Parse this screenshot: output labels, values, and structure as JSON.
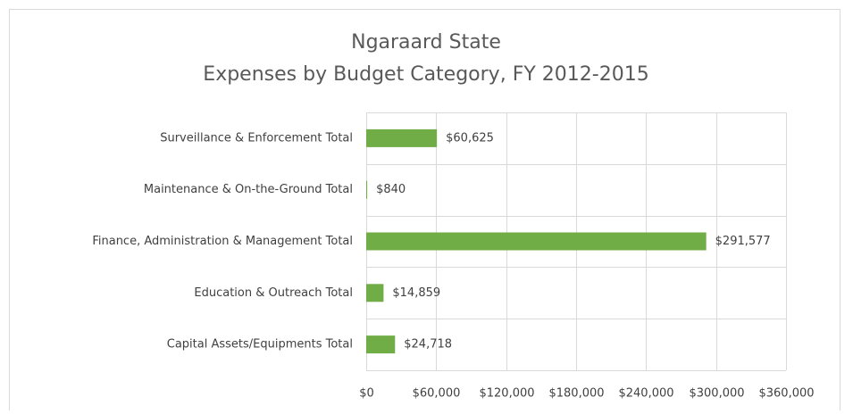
{
  "chart_data": {
    "type": "bar",
    "orientation": "horizontal",
    "title": "Ngaraard State",
    "subtitle": "Expenses by Budget Category, FY 2012-2015",
    "categories": [
      "Surveillance & Enforcement Total",
      "Maintenance & On-the-Ground Total",
      "Finance, Administration & Management Total",
      "Education & Outreach Total",
      "Capital Assets/Equipments Total"
    ],
    "values": [
      60625,
      840,
      291577,
      14859,
      24718
    ],
    "value_labels": [
      "$60,625",
      "$840",
      "$291,577",
      "$14,859",
      "$24,718"
    ],
    "color": "#70ad47",
    "xlim": [
      0,
      360000
    ],
    "xticks": [
      {
        "value": 0,
        "label": "$0"
      },
      {
        "value": 60000,
        "label": "$60,000"
      },
      {
        "value": 120000,
        "label": "$120,000"
      },
      {
        "value": 180000,
        "label": "$180,000"
      },
      {
        "value": 240000,
        "label": "$240,000"
      },
      {
        "value": 300000,
        "label": "$300,000"
      },
      {
        "value": 360000,
        "label": "$360,000"
      }
    ],
    "grid": true
  }
}
